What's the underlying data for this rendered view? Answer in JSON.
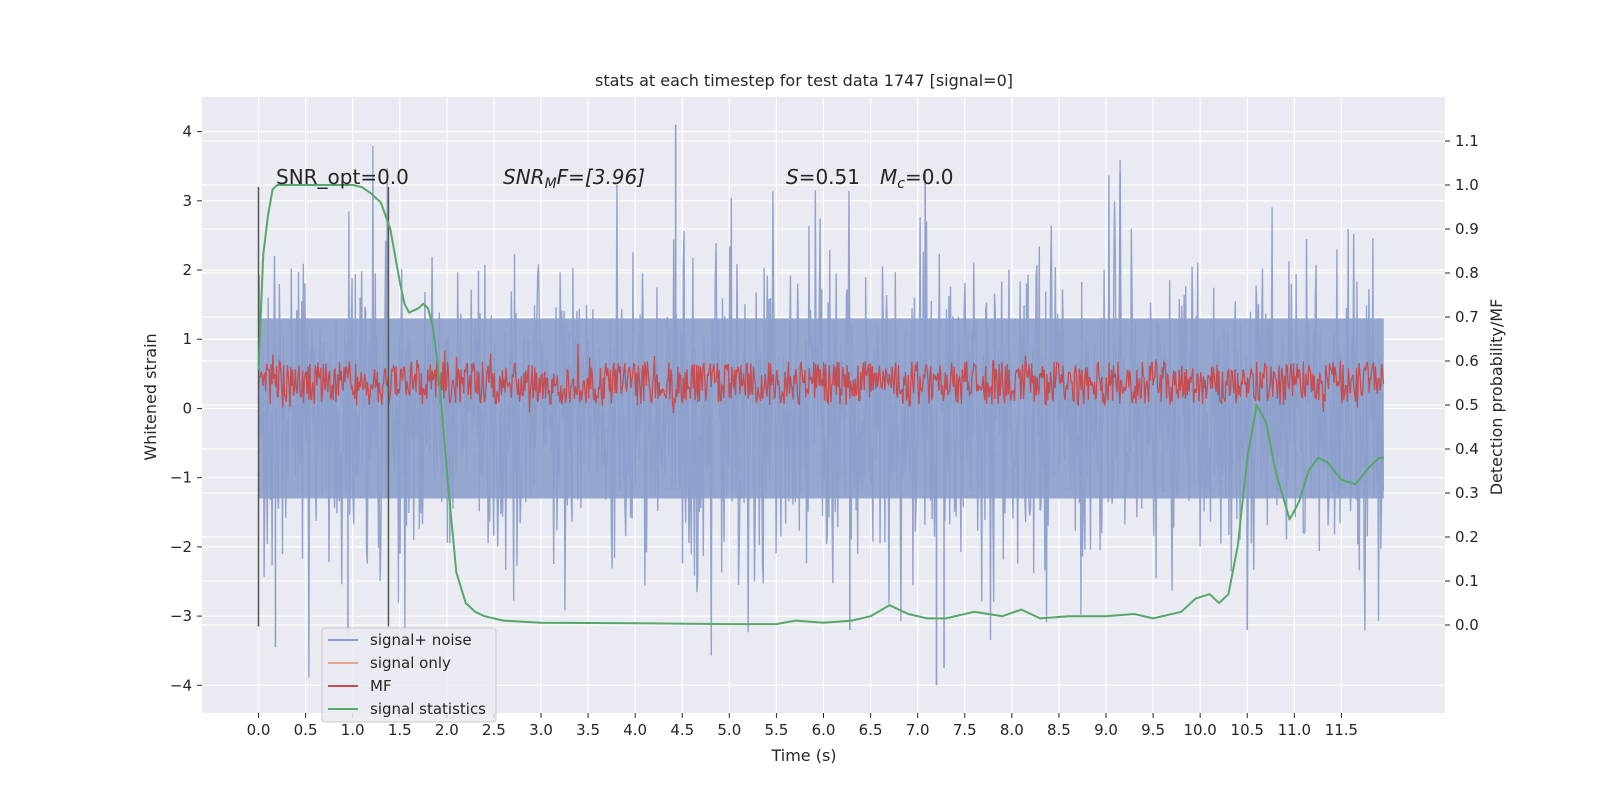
{
  "chart_data": {
    "type": "line",
    "title": "stats at each timestep for test data 1747 [signal=0]",
    "xlabel": "Time (s)",
    "ylabel_left": "Whitened strain",
    "ylabel_right": "Detection probability/MF",
    "xlim": [
      -0.6,
      12.6
    ],
    "ylim_left": [
      -4.4,
      4.5
    ],
    "ylim_right": [
      -0.2,
      1.2
    ],
    "x_ticks": [
      0.0,
      0.5,
      1.0,
      1.5,
      2.0,
      2.5,
      3.0,
      3.5,
      4.0,
      4.5,
      5.0,
      5.5,
      6.0,
      6.5,
      7.0,
      7.5,
      8.0,
      8.5,
      9.0,
      9.5,
      10.0,
      10.5,
      11.0,
      11.5
    ],
    "x_tick_labels": [
      "0.0",
      "0.5",
      "1.0",
      "1.5",
      "2.0",
      "2.5",
      "3.0",
      "3.5",
      "4.0",
      "4.5",
      "5.0",
      "5.5",
      "6.0",
      "6.5",
      "7.0",
      "7.5",
      "8.0",
      "8.5",
      "9.0",
      "9.5",
      "10.0",
      "10.5",
      "11.0",
      "11.5"
    ],
    "y_left_ticks": [
      -4,
      -3,
      -2,
      -1,
      0,
      1,
      2,
      3,
      4
    ],
    "y_left_tick_labels": [
      "−4",
      "−3",
      "−2",
      "−1",
      "0",
      "1",
      "2",
      "3",
      "4"
    ],
    "y_right_ticks": [
      0.0,
      0.1,
      0.2,
      0.3,
      0.4,
      0.5,
      0.6,
      0.7,
      0.8,
      0.9,
      1.0,
      1.1
    ],
    "y_right_tick_labels": [
      "0.0",
      "0.1",
      "0.2",
      "0.3",
      "0.4",
      "0.5",
      "0.6",
      "0.7",
      "0.8",
      "0.9",
      "1.0",
      "1.1"
    ],
    "grid": true,
    "legend_position": "bottom-left",
    "annotations": {
      "snr_opt": "SNR_opt=0.0",
      "snr_mf_main": "SNR",
      "snr_mf_sub": "M",
      "snr_mf_rest": "F=[3.96]",
      "s_main": "S",
      "s_rest": "=0.51",
      "mc_main": "M",
      "mc_sub": "c",
      "mc_rest": "=0.0"
    },
    "vertical_lines": [
      {
        "x": 0.0,
        "y_range": [
          -3.15,
          3.2
        ]
      },
      {
        "x": 1.38,
        "y_range": [
          -3.15,
          3.2
        ]
      }
    ],
    "series": [
      {
        "name": "signal+ noise",
        "color": "#8da0cb",
        "axis": "left",
        "style": "noise",
        "x_range": [
          0.0,
          11.95
        ],
        "typical_range": [
          -1.3,
          1.3
        ],
        "notable_peaks": [
          [
            4.43,
            4.1
          ],
          [
            7.08,
            3.45
          ],
          [
            9.15,
            3.4
          ],
          [
            0.18,
            -3.45
          ],
          [
            7.2,
            -4.0
          ],
          [
            7.28,
            -3.75
          ],
          [
            6.28,
            -3.2
          ],
          [
            0.95,
            -3.25
          ],
          [
            10.5,
            -3.2
          ]
        ]
      },
      {
        "name": "signal only",
        "color": "#e8a58a",
        "axis": "left",
        "values": []
      },
      {
        "name": "MF",
        "color": "#c44e52",
        "axis": "right",
        "style": "noise",
        "x_range": [
          0.0,
          11.95
        ],
        "typical_range": [
          0.5,
          0.6
        ]
      },
      {
        "name": "signal statistics",
        "color": "#55a868",
        "axis": "right",
        "x": [
          0.0,
          0.05,
          0.1,
          0.15,
          0.2,
          0.3,
          0.5,
          0.8,
          1.0,
          1.1,
          1.2,
          1.3,
          1.4,
          1.5,
          1.55,
          1.6,
          1.7,
          1.75,
          1.8,
          1.85,
          1.9,
          1.95,
          2.0,
          2.1,
          2.2,
          2.3,
          2.4,
          2.6,
          3.0,
          4.0,
          5.0,
          5.5,
          5.7,
          6.0,
          6.3,
          6.5,
          6.7,
          6.9,
          7.1,
          7.3,
          7.6,
          7.9,
          8.1,
          8.3,
          8.6,
          9.0,
          9.3,
          9.5,
          9.8,
          9.95,
          10.1,
          10.2,
          10.3,
          10.4,
          10.5,
          10.6,
          10.7,
          10.8,
          10.95,
          11.05,
          11.15,
          11.25,
          11.35,
          11.5,
          11.65,
          11.8,
          11.9,
          11.95
        ],
        "values": [
          0.58,
          0.84,
          0.93,
          0.99,
          1.0,
          1.0,
          1.0,
          1.0,
          1.0,
          0.995,
          0.98,
          0.96,
          0.9,
          0.78,
          0.73,
          0.71,
          0.72,
          0.73,
          0.72,
          0.68,
          0.6,
          0.48,
          0.35,
          0.12,
          0.05,
          0.03,
          0.02,
          0.01,
          0.005,
          0.004,
          0.002,
          0.002,
          0.01,
          0.005,
          0.01,
          0.02,
          0.045,
          0.025,
          0.015,
          0.015,
          0.03,
          0.02,
          0.035,
          0.015,
          0.02,
          0.02,
          0.025,
          0.015,
          0.03,
          0.06,
          0.07,
          0.05,
          0.07,
          0.18,
          0.38,
          0.5,
          0.46,
          0.35,
          0.24,
          0.28,
          0.35,
          0.38,
          0.37,
          0.33,
          0.32,
          0.36,
          0.38,
          0.38
        ]
      }
    ]
  }
}
